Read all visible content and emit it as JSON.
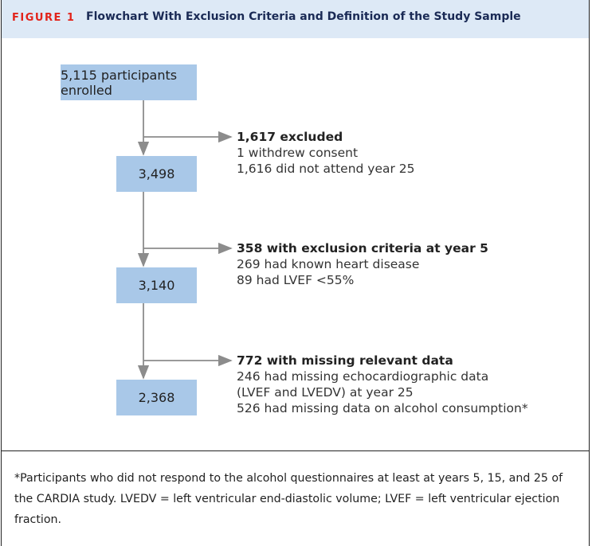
{
  "header": {
    "figure_label": "FIGURE 1",
    "title": "Flowchart With Exclusion Criteria and Definition of the Study Sample"
  },
  "nodes": [
    {
      "label": "5,115 participants enrolled"
    },
    {
      "label": "3,498"
    },
    {
      "label": "3,140"
    },
    {
      "label": "2,368"
    }
  ],
  "exclusions": [
    {
      "title": "1,617 excluded",
      "lines": [
        "1 withdrew consent",
        "1,616 did not attend year 25"
      ]
    },
    {
      "title": "358 with exclusion criteria at year 5",
      "lines": [
        "269 had known heart disease",
        "89 had LVEF <55%"
      ]
    },
    {
      "title": "772 with missing relevant data",
      "lines": [
        "246 had missing echocardiographic data",
        "(LVEF and LVEDV) at year 25",
        "526 had missing data on alcohol consumption*"
      ]
    }
  ],
  "footnote": "*Participants who did not respond to the alcohol questionnaires at least at years 5, 15, and 25 of the CARDIA study. LVEDV = left ventricular end-diastolic volume; LVEF = left ventricular ejection fraction."
}
